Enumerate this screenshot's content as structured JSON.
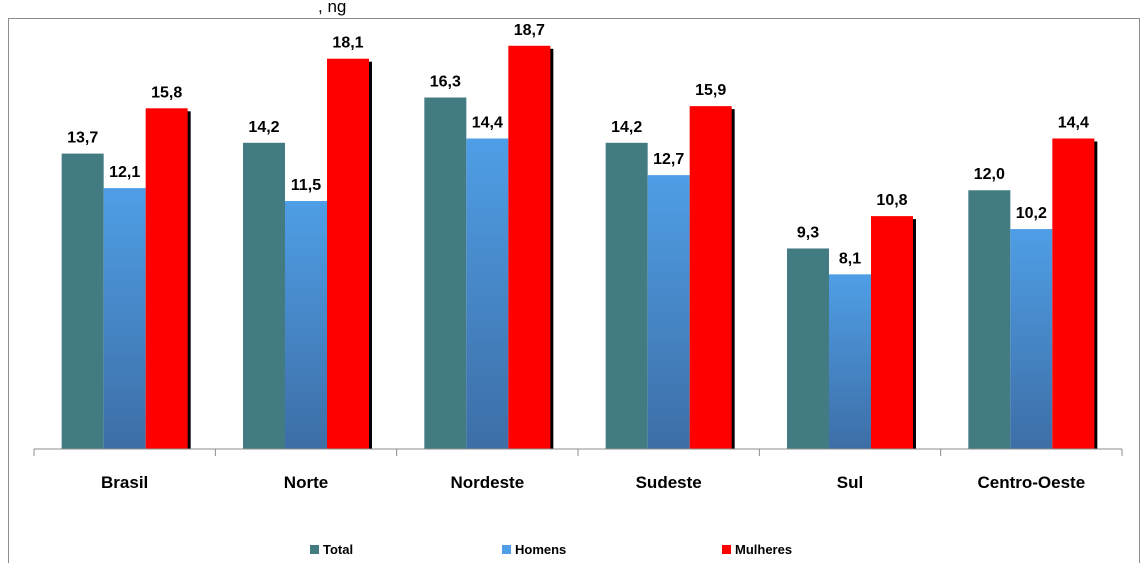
{
  "colors": {
    "total": "#427b82",
    "homens_top": "#4f9ee6",
    "homens_bottom": "#3d6ea6",
    "mulheres": "#ff0000",
    "shadow": "#000000",
    "axis": "#8c8c8c"
  },
  "chart_data": {
    "type": "bar",
    "title": ", ng",
    "categories": [
      "Brasil",
      "Norte",
      "Nordeste",
      "Sudeste",
      "Sul",
      "Centro-Oeste"
    ],
    "series": [
      {
        "name": "Total",
        "values": [
          13.7,
          14.2,
          16.3,
          14.2,
          9.3,
          12.0
        ],
        "labels": [
          "13,7",
          "14,2",
          "16,3",
          "14,2",
          "9,3",
          "12,0"
        ]
      },
      {
        "name": "Homens",
        "values": [
          12.1,
          11.5,
          14.4,
          12.7,
          8.1,
          10.2
        ],
        "labels": [
          "12,1",
          "11,5",
          "14,4",
          "12,7",
          "8,1",
          "10,2"
        ]
      },
      {
        "name": "Mulheres",
        "values": [
          15.8,
          18.1,
          18.7,
          15.9,
          10.8,
          14.4
        ],
        "labels": [
          "15,8",
          "18,1",
          "18,7",
          "15,9",
          "10,8",
          "14,4"
        ]
      }
    ],
    "ylim": [
      0,
      20.5
    ],
    "grid": false,
    "legend_position": "bottom"
  }
}
